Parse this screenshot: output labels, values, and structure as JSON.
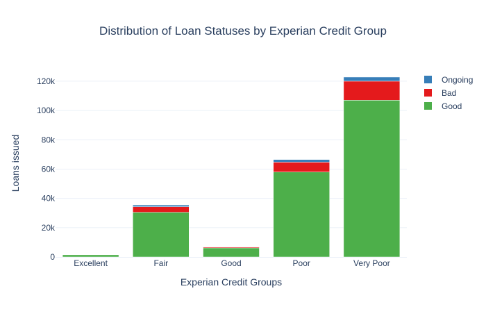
{
  "chart_data": {
    "type": "bar",
    "stacked": true,
    "title": "Distribution of Loan Statuses by Experian Credit Group",
    "xlabel": "Experian Credit Groups",
    "ylabel": "Loans issued",
    "categories": [
      "Excellent",
      "Fair",
      "Good",
      "Poor",
      "Very Poor"
    ],
    "ylim": [
      0,
      128000
    ],
    "yticks": [
      0,
      20000,
      40000,
      60000,
      80000,
      100000,
      120000
    ],
    "ytick_labels": [
      "0",
      "20k",
      "40k",
      "60k",
      "80k",
      "100k",
      "120k"
    ],
    "grid": true,
    "legend_position": "top-right",
    "series": [
      {
        "name": "Good",
        "color": "#4daf4a",
        "values": [
          1500,
          30500,
          6200,
          58000,
          107000
        ]
      },
      {
        "name": "Bad",
        "color": "#e41a1c",
        "values": [
          200,
          3800,
          600,
          6700,
          13000
        ]
      },
      {
        "name": "Ongoing",
        "color": "#377eb8",
        "values": [
          100,
          1200,
          200,
          1800,
          2800
        ]
      }
    ],
    "legend_order": [
      "Ongoing",
      "Bad",
      "Good"
    ]
  }
}
